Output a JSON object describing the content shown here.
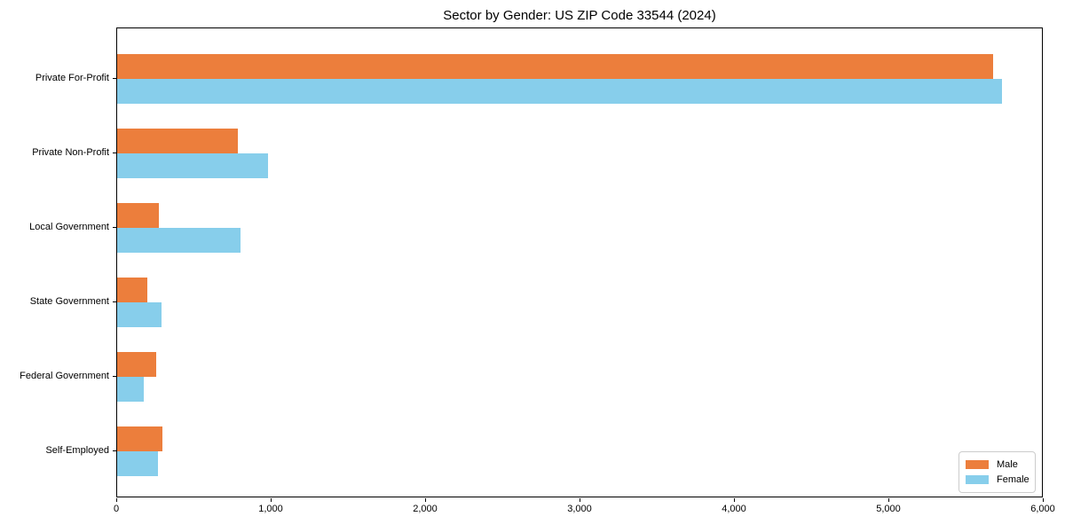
{
  "title": "Sector by Gender: US ZIP Code 33544 (2024)",
  "colors": {
    "male": "#EC7E3C",
    "female": "#87CEEB",
    "axis": "#000000",
    "legend_border": "#cccccc",
    "background": "#ffffff"
  },
  "chart_data": {
    "type": "bar",
    "orientation": "horizontal",
    "title": "Sector by Gender: US ZIP Code 33544 (2024)",
    "xlabel": "",
    "ylabel": "",
    "categories": [
      "Private For-Profit",
      "Private Non-Profit",
      "Local Government",
      "State Government",
      "Federal Government",
      "Self-Employed"
    ],
    "series": [
      {
        "name": "Male",
        "color_key": "male",
        "values": [
          5670,
          780,
          270,
          195,
          255,
          290
        ]
      },
      {
        "name": "Female",
        "color_key": "female",
        "values": [
          5730,
          975,
          800,
          285,
          175,
          265
        ]
      }
    ],
    "xlim": [
      0,
      6000
    ],
    "xticks": [
      0,
      1000,
      2000,
      3000,
      4000,
      5000,
      6000
    ],
    "xtick_labels": [
      "0",
      "1,000",
      "2,000",
      "3,000",
      "4,000",
      "5,000",
      "6,000"
    ],
    "grid": false,
    "legend_position": "lower right"
  }
}
